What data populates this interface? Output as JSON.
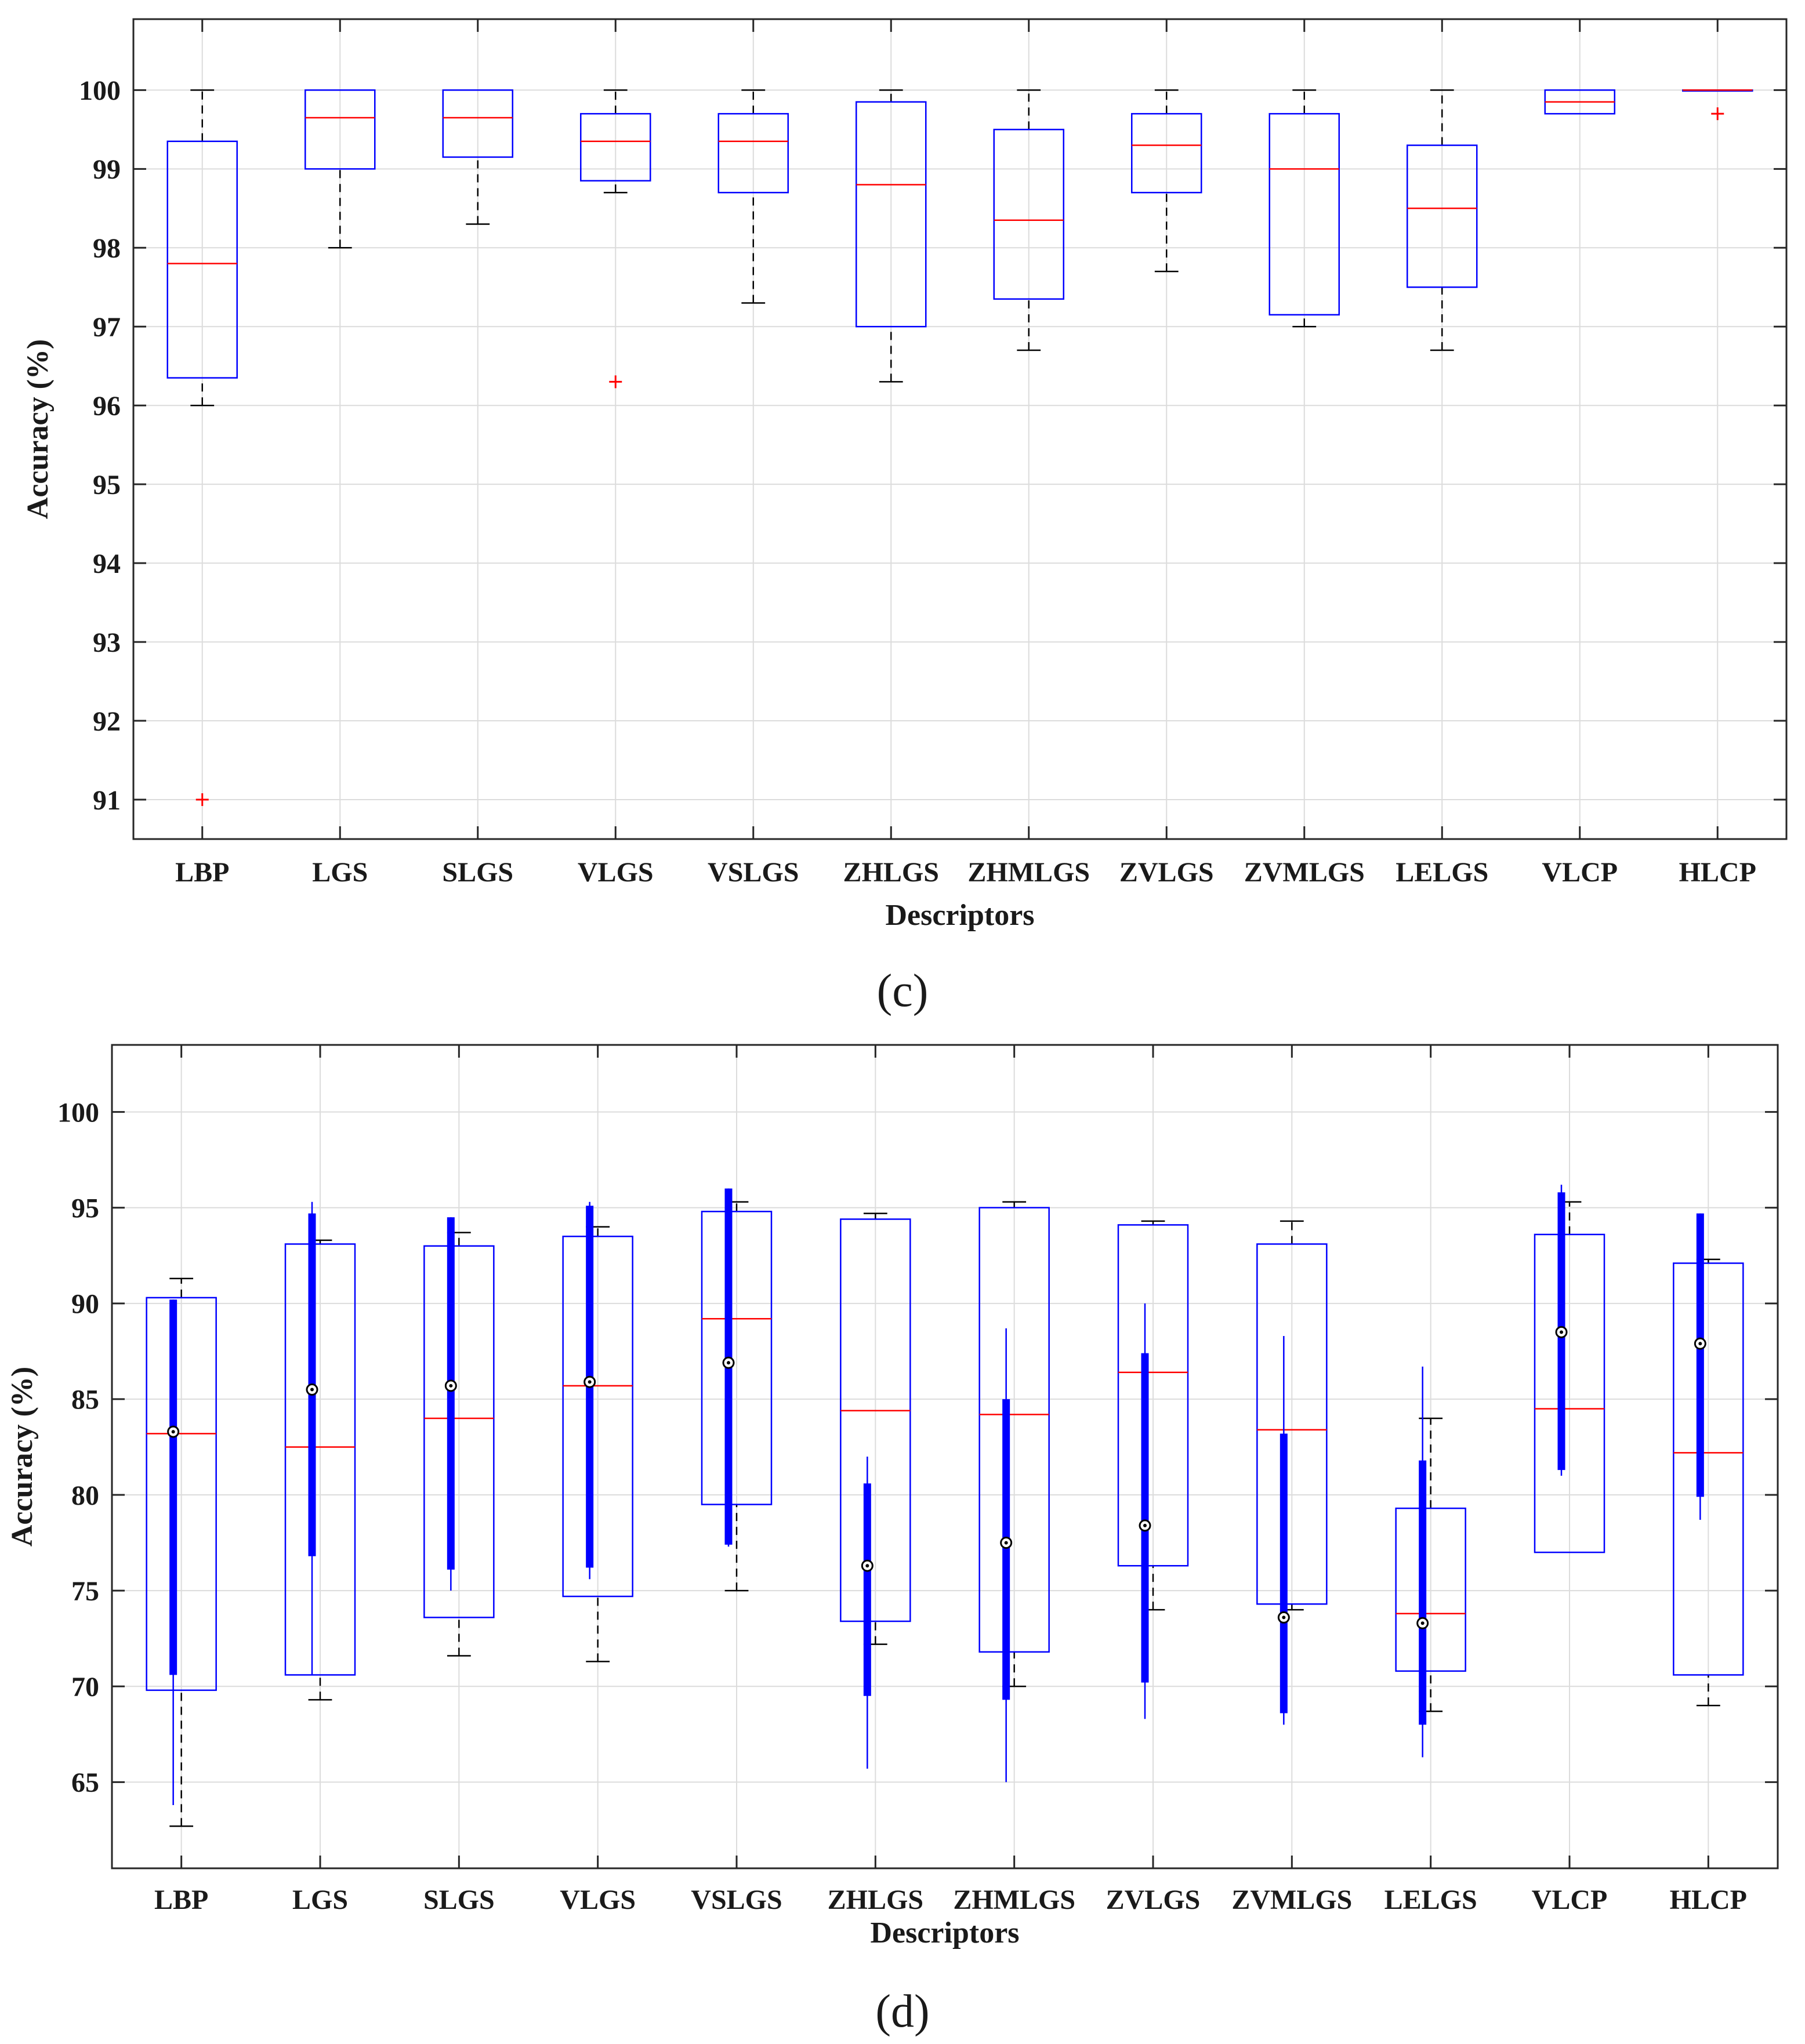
{
  "colors": {
    "box": "#0000ff",
    "median": "#ff0000",
    "whisker": "#000000",
    "outlier": "#ff0000",
    "grid": "#dcdcdc",
    "axis": "#262626",
    "violin": "#0000ff"
  },
  "chart_data": [
    {
      "type": "box",
      "panel_label": "(c)",
      "xlabel": "Descriptors",
      "ylabel": "Accuracy (%)",
      "ylim": [
        90.5,
        100.9
      ],
      "yticks": [
        91,
        92,
        93,
        94,
        95,
        96,
        97,
        98,
        99,
        100
      ],
      "grid": true,
      "categories": [
        "LBP",
        "LGS",
        "SLGS",
        "VLGS",
        "VSLGS",
        "ZHLGS",
        "ZHMLGS",
        "ZVLGS",
        "ZVMLGS",
        "LELGS",
        "VLCP",
        "HLCP"
      ],
      "boxes": [
        {
          "wmin": 96.0,
          "q1": 96.35,
          "median": 97.8,
          "q3": 99.35,
          "wmax": 100.0,
          "outliers": [
            91.0
          ]
        },
        {
          "wmin": 98.0,
          "q1": 99.0,
          "median": 99.65,
          "q3": 100.0,
          "wmax": 100.0,
          "outliers": []
        },
        {
          "wmin": 98.3,
          "q1": 99.15,
          "median": 99.65,
          "q3": 100.0,
          "wmax": 100.0,
          "outliers": []
        },
        {
          "wmin": 98.7,
          "q1": 98.85,
          "median": 99.35,
          "q3": 99.7,
          "wmax": 100.0,
          "outliers": [
            96.3
          ]
        },
        {
          "wmin": 97.3,
          "q1": 98.7,
          "median": 99.35,
          "q3": 99.7,
          "wmax": 100.0,
          "outliers": []
        },
        {
          "wmin": 96.3,
          "q1": 97.0,
          "median": 98.8,
          "q3": 99.85,
          "wmax": 100.0,
          "outliers": []
        },
        {
          "wmin": 96.7,
          "q1": 97.35,
          "median": 98.35,
          "q3": 99.5,
          "wmax": 100.0,
          "outliers": []
        },
        {
          "wmin": 97.7,
          "q1": 98.7,
          "median": 99.3,
          "q3": 99.7,
          "wmax": 100.0,
          "outliers": []
        },
        {
          "wmin": 97.0,
          "q1": 97.15,
          "median": 99.0,
          "q3": 99.7,
          "wmax": 100.0,
          "outliers": []
        },
        {
          "wmin": 96.7,
          "q1": 97.5,
          "median": 98.5,
          "q3": 99.3,
          "wmax": 100.0,
          "outliers": []
        },
        {
          "wmin": 99.7,
          "q1": 99.7,
          "median": 99.85,
          "q3": 100.0,
          "wmax": 100.0,
          "outliers": []
        },
        {
          "wmin": 100.0,
          "q1": 100.0,
          "median": 100.0,
          "q3": 100.0,
          "wmax": 100.0,
          "outliers": [
            99.7
          ]
        }
      ]
    },
    {
      "type": "box",
      "panel_label": "(d)",
      "xlabel": "Descriptors",
      "ylabel": "Accuracy (%)",
      "ylim": [
        60.5,
        103.5
      ],
      "yticks": [
        65,
        70,
        75,
        80,
        85,
        90,
        95,
        100
      ],
      "grid": true,
      "categories": [
        "LBP",
        "LGS",
        "SLGS",
        "VLGS",
        "VSLGS",
        "ZHLGS",
        "ZHMLGS",
        "ZVLGS",
        "ZVMLGS",
        "LELGS",
        "VLCP",
        "HLCP"
      ],
      "boxes": [
        {
          "wmin": 62.7,
          "q1": 69.8,
          "median": 83.2,
          "q3": 90.3,
          "wmax": 91.3,
          "outliers": [],
          "overlay": {
            "line_min": 63.8,
            "thick_min": 70.6,
            "center": 83.3,
            "thick_max": 90.2,
            "line_max": 90.2
          }
        },
        {
          "wmin": 69.3,
          "q1": 70.6,
          "median": 82.5,
          "q3": 93.1,
          "wmax": 93.3,
          "outliers": [],
          "overlay": {
            "line_min": 70.6,
            "thick_min": 76.8,
            "center": 85.5,
            "thick_max": 94.7,
            "line_max": 95.3
          }
        },
        {
          "wmin": 71.6,
          "q1": 73.6,
          "median": 84.0,
          "q3": 93.0,
          "wmax": 93.7,
          "outliers": [],
          "overlay": {
            "line_min": 75.0,
            "thick_min": 76.1,
            "center": 85.7,
            "thick_max": 94.5,
            "line_max": 94.5
          }
        },
        {
          "wmin": 71.3,
          "q1": 74.7,
          "median": 85.7,
          "q3": 93.5,
          "wmax": 94.0,
          "outliers": [],
          "overlay": {
            "line_min": 75.6,
            "thick_min": 76.2,
            "center": 85.9,
            "thick_max": 95.1,
            "line_max": 95.3
          }
        },
        {
          "wmin": 75.0,
          "q1": 79.5,
          "median": 89.2,
          "q3": 94.8,
          "wmax": 95.3,
          "outliers": [],
          "overlay": {
            "line_min": 77.3,
            "thick_min": 77.4,
            "center": 86.9,
            "thick_max": 96.0,
            "line_max": 96.0
          }
        },
        {
          "wmin": 72.2,
          "q1": 73.4,
          "median": 84.4,
          "q3": 94.4,
          "wmax": 94.7,
          "outliers": [],
          "overlay": {
            "line_min": 65.7,
            "thick_min": 69.5,
            "center": 76.3,
            "thick_max": 80.6,
            "line_max": 82.0
          }
        },
        {
          "wmin": 70.0,
          "q1": 71.8,
          "median": 84.2,
          "q3": 95.0,
          "wmax": 95.3,
          "outliers": [],
          "overlay": {
            "line_min": 65.0,
            "thick_min": 69.3,
            "center": 77.5,
            "thick_max": 85.0,
            "line_max": 88.7
          }
        },
        {
          "wmin": 74.0,
          "q1": 76.3,
          "median": 86.4,
          "q3": 94.1,
          "wmax": 94.3,
          "outliers": [],
          "overlay": {
            "line_min": 68.3,
            "thick_min": 70.2,
            "center": 78.4,
            "thick_max": 87.4,
            "line_max": 90.0
          }
        },
        {
          "wmin": 74.0,
          "q1": 74.3,
          "median": 83.4,
          "q3": 93.1,
          "wmax": 94.3,
          "outliers": [],
          "overlay": {
            "line_min": 68.0,
            "thick_min": 68.6,
            "center": 73.6,
            "thick_max": 83.2,
            "line_max": 88.3
          }
        },
        {
          "wmin": 68.7,
          "q1": 70.8,
          "median": 73.8,
          "q3": 79.3,
          "wmax": 84.0,
          "outliers": [],
          "overlay": {
            "line_min": 66.3,
            "thick_min": 68.0,
            "center": 73.3,
            "thick_max": 81.8,
            "line_max": 86.7
          }
        },
        {
          "wmin": 77.0,
          "q1": 77.0,
          "median": 84.5,
          "q3": 93.6,
          "wmax": 95.3,
          "outliers": [],
          "overlay": {
            "line_min": 81.0,
            "thick_min": 81.3,
            "center": 88.5,
            "thick_max": 95.8,
            "line_max": 96.2
          }
        },
        {
          "wmin": 69.0,
          "q1": 70.6,
          "median": 82.2,
          "q3": 92.1,
          "wmax": 92.3,
          "outliers": [],
          "overlay": {
            "line_min": 78.7,
            "thick_min": 79.9,
            "center": 87.9,
            "thick_max": 94.7,
            "line_max": 94.7
          }
        }
      ]
    }
  ]
}
